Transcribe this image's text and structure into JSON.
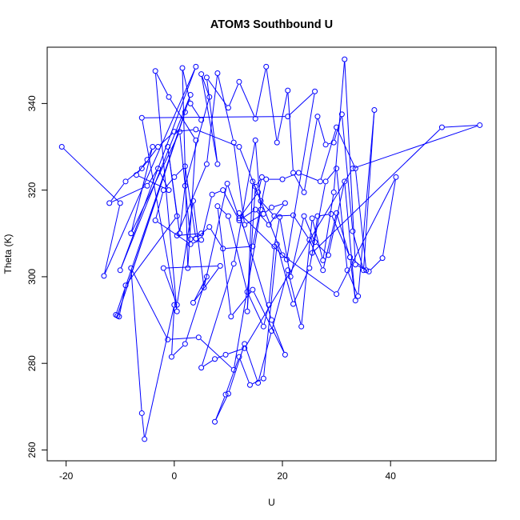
{
  "chart_data": {
    "type": "scatter",
    "title": "ATOM3 Southbound U",
    "xlabel": "U",
    "ylabel": "Theta (K)",
    "xlim": [
      -23.5,
      59.5
    ],
    "ylim": [
      257.5,
      353
    ],
    "xticks": [
      -20,
      0,
      20,
      40
    ],
    "yticks": [
      260,
      280,
      300,
      320,
      340
    ],
    "grid": false,
    "legend": "none",
    "style": "points connected by lines (type=o)",
    "color": "#0000ff",
    "series": [
      {
        "x": [
          -20.8,
          -10,
          -13,
          4,
          -10,
          3,
          -10.5,
          2,
          -10.8,
          -10.2,
          -9,
          0.5,
          -1.2,
          1,
          2,
          6.5,
          5,
          8,
          6,
          10,
          12,
          15,
          17,
          19,
          21,
          22,
          24,
          26.5,
          28,
          29.5,
          31,
          33,
          35,
          37,
          34,
          32,
          30,
          28,
          25,
          22,
          19,
          16.5,
          14,
          12,
          9.5,
          7.5,
          10,
          13,
          15.5,
          18,
          21,
          23.5,
          25.5,
          27.5,
          29.5,
          31.5,
          33.5,
          36,
          38.5,
          41,
          30,
          20,
          12,
          4,
          0,
          -3,
          -6,
          -9,
          -12,
          -5,
          -3,
          -1,
          -7,
          -5,
          -4,
          -8,
          1,
          3,
          5,
          0.5,
          6,
          8,
          11,
          13,
          16.5,
          18,
          20.5,
          17.5,
          15,
          12,
          9,
          7,
          5,
          3,
          -3.5,
          -2,
          0,
          2,
          4,
          6.5,
          9,
          14.5,
          17,
          20,
          23,
          27,
          30,
          33.5,
          35.5,
          32.5,
          29,
          26.5,
          25.5,
          49.5,
          56.5,
          33,
          13,
          9.5,
          7.5,
          5,
          11,
          15,
          16,
          11,
          4.5,
          -1.2,
          -8,
          -6,
          -5.5,
          0,
          -0.5,
          2,
          6,
          3.5,
          8.5,
          -2,
          0.5,
          3.5,
          5.5,
          9.8,
          12,
          15.5,
          16.2,
          15,
          13.5,
          14.5,
          16,
          18.5,
          22,
          25,
          27.5,
          30,
          32.5,
          33.5,
          31.5,
          28.5,
          26,
          24,
          21.5,
          19.5,
          18.5,
          17.5,
          16.5,
          13.5,
          10,
          8,
          10.5,
          14.5,
          20.5,
          18,
          12,
          20.8,
          26,
          21,
          -6,
          0.5,
          -3.5,
          -1,
          4,
          2.5,
          1.5,
          3,
          5
        ],
        "y": [
          330,
          317,
          300.2,
          348.5,
          301.5,
          342,
          291,
          338,
          291.2,
          290.8,
          298,
          314,
          330,
          310,
          321,
          341.5,
          346.8,
          326,
          346,
          339,
          345,
          336.5,
          348.5,
          331,
          343,
          324,
          319.5,
          337,
          330.5,
          331,
          337.5,
          310.5,
          301.5,
          338.5,
          295.5,
          301.5,
          325,
          322,
          302,
          293.7,
          307.5,
          276.5,
          275,
          281.5,
          272.8,
          266.5,
          273,
          284.5,
          275.5,
          287.5,
          301.5,
          288.5,
          313.5,
          303.8,
          319.5,
          350.2,
          302.8,
          301.2,
          304.3,
          323,
          296,
          305,
          330,
          334,
          333.5,
          330,
          325,
          322,
          317,
          321,
          325,
          320,
          323.5,
          327,
          330,
          310,
          333.5,
          308.7,
          310,
          309.5,
          326,
          347,
          331,
          312,
          314.5,
          316,
          317,
          312,
          315.5,
          313,
          320,
          319,
          308.5,
          307.5,
          313,
          320,
          323,
          325.5,
          308.8,
          311.5,
          306.5,
          307,
          322.5,
          322.5,
          324,
          322,
          334.5,
          325,
          301.5,
          304.5,
          314.5,
          314,
          305.5,
          334.5,
          335,
          325,
          283.5,
          282,
          281,
          279,
          303,
          331.5,
          315.5,
          278.5,
          286,
          285.5,
          302,
          268.5,
          262.5,
          293.5,
          281.5,
          284.5,
          300,
          294,
          302.5,
          302,
          293.5,
          317.5,
          297.5,
          321.5,
          313.5,
          319.5,
          323,
          320.8,
          292,
          322,
          317.5,
          314,
          314.2,
          308.5,
          301.5,
          314.7,
          304.5,
          294.5,
          322,
          305,
          308,
          314,
          300,
          313.8,
          307,
          293.5,
          288.5,
          296.5,
          314,
          316.3,
          290.8,
          297,
          282,
          290,
          314.7,
          304,
          342.8,
          337,
          336.7,
          292,
          347.5,
          341.5,
          331.5,
          302,
          348.2,
          340,
          336.2
        ]
      }
    ]
  }
}
